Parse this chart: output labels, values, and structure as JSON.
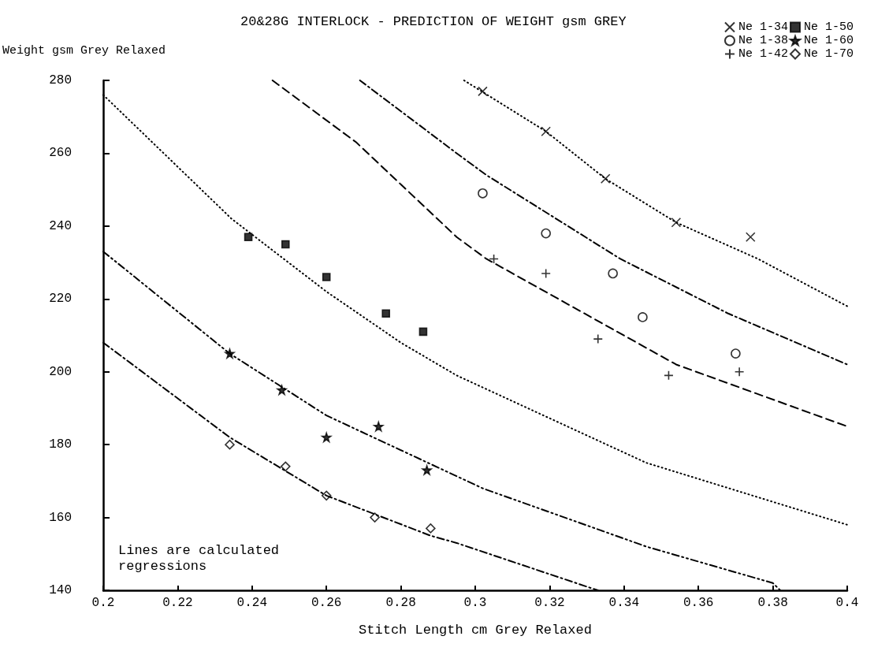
{
  "chart_data": {
    "type": "scatter",
    "title": "20&28G INTERLOCK - PREDICTION OF WEIGHT gsm GREY",
    "xlabel": "Stitch Length cm Grey Relaxed",
    "ylabel": "Weight gsm Grey Relaxed",
    "annotations": [
      "Lines are calculated regressions"
    ],
    "xlim": [
      0.2,
      0.4
    ],
    "xticks": [
      0.2,
      0.22,
      0.24,
      0.26,
      0.28,
      0.3,
      0.32,
      0.34,
      0.36,
      0.38,
      0.4
    ],
    "ylim": [
      140,
      280
    ],
    "yticks": [
      140,
      160,
      180,
      200,
      220,
      240,
      260,
      280
    ],
    "grid": false,
    "legend": "top right",
    "series": [
      {
        "name": "Ne 1-34",
        "color": "#000000",
        "marker": "cross",
        "x": [
          0.302,
          0.319,
          0.335,
          0.354,
          0.374
        ],
        "values": [
          277,
          266,
          253,
          241,
          237
        ]
      },
      {
        "name": "Ne 1-38",
        "color": "#000000",
        "marker": "circle",
        "x": [
          0.302,
          0.319,
          0.337,
          0.345,
          0.37
        ],
        "values": [
          249,
          238,
          227,
          215,
          205
        ]
      },
      {
        "name": "Ne 1-42",
        "color": "#000000",
        "marker": "plus",
        "x": [
          0.305,
          0.319,
          0.333,
          0.352,
          0.371
        ],
        "values": [
          231,
          227,
          209,
          199,
          200
        ]
      },
      {
        "name": "Ne 1-50",
        "color": "#000000",
        "marker": "square",
        "x": [
          0.239,
          0.249,
          0.26,
          0.276,
          0.286
        ],
        "values": [
          237,
          235,
          226,
          216,
          211
        ]
      },
      {
        "name": "Ne 1-60",
        "color": "#000000",
        "marker": "star",
        "x": [
          0.234,
          0.248,
          0.26,
          0.274,
          0.287
        ],
        "values": [
          205,
          195,
          182,
          185,
          173
        ]
      },
      {
        "name": "Ne 1-70",
        "color": "#000000",
        "marker": "diamond",
        "x": [
          0.234,
          0.249,
          0.26,
          0.273,
          0.288
        ],
        "values": [
          180,
          174,
          166,
          160,
          157
        ]
      },
      {
        "type": "line",
        "color": "#000000",
        "line_style": "dotted",
        "x": [
          0.297,
          0.319,
          0.335,
          0.354,
          0.376,
          0.4
        ],
        "values": [
          280,
          266,
          253,
          241,
          231,
          218
        ]
      },
      {
        "type": "line",
        "color": "#000000",
        "line_style": "dashdot",
        "x": [
          0.269,
          0.295,
          0.303,
          0.339,
          0.368,
          0.4
        ],
        "values": [
          280,
          260,
          254,
          231,
          216,
          202
        ]
      },
      {
        "type": "line",
        "color": "#000000",
        "line_style": "dashed",
        "x": [
          0.2455,
          0.268,
          0.295,
          0.303,
          0.354,
          0.4
        ],
        "values": [
          280,
          263,
          237,
          231,
          202,
          185
        ]
      },
      {
        "type": "line",
        "color": "#000000",
        "line_style": "dotted",
        "x": [
          0.2,
          0.2345,
          0.26,
          0.28,
          0.295,
          0.346,
          0.4
        ],
        "values": [
          276,
          242,
          222,
          208,
          199,
          175,
          158
        ]
      },
      {
        "type": "line",
        "color": "#000000",
        "line_style": "dashdotdot",
        "x": [
          0.2,
          0.234,
          0.26,
          0.302,
          0.346,
          0.38,
          0.382
        ],
        "values": [
          233,
          205,
          188,
          168,
          152,
          142,
          140
        ]
      },
      {
        "type": "line",
        "color": "#000000",
        "line_style": "dashdot",
        "x": [
          0.2,
          0.234,
          0.26,
          0.288,
          0.295,
          0.33,
          0.333
        ],
        "values": [
          208,
          182,
          166,
          155,
          153,
          141,
          140
        ]
      }
    ]
  }
}
